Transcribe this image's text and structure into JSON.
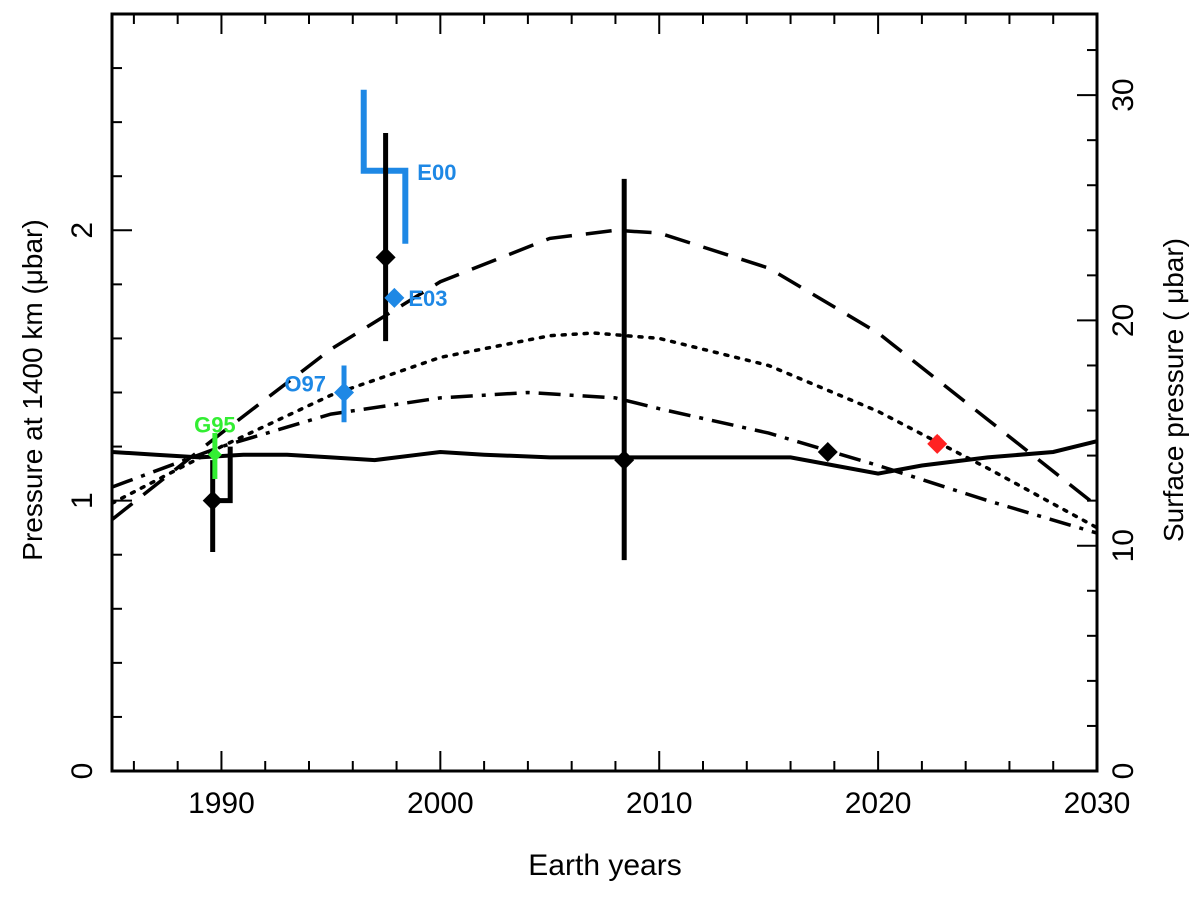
{
  "chart_data": {
    "type": "scatter",
    "xlabel": "Earth years",
    "ylabel_left": "Pressure at 1400 km (μbar)",
    "ylabel_right": "Surface pressure ( μbar)",
    "xlim": [
      1985,
      2030
    ],
    "ylim_left": [
      0,
      2.8
    ],
    "ylim_right": [
      0,
      33.6
    ],
    "x_ticks": [
      1990,
      2000,
      2010,
      2020,
      2030
    ],
    "x_tick_labels": [
      "1990",
      "2000",
      "2010",
      "2020",
      "2030"
    ],
    "y_left_ticks": [
      0,
      1,
      2
    ],
    "y_left_tick_labels": [
      "0",
      "1",
      "2"
    ],
    "y_right_ticks": [
      0,
      10,
      20,
      30
    ],
    "y_right_tick_labels": [
      "0",
      "10",
      "20",
      "30"
    ],
    "grid": false,
    "colors": {
      "black": "#000000",
      "blue": "#1e88e5",
      "green": "#33ee33",
      "red": "#ff2222"
    },
    "measurements": [
      {
        "x": 1989.6,
        "y": 1.0,
        "low": 0.81,
        "high": 1.15,
        "color": "black"
      },
      {
        "x": 1997.5,
        "y": 1.9,
        "low": 1.59,
        "high": 2.36,
        "color": "black"
      },
      {
        "x": 2008.4,
        "y": 1.15,
        "low": 0.78,
        "high": 2.19,
        "color": "black"
      },
      {
        "x": 2017.7,
        "y": 1.18,
        "low": 1.18,
        "high": 1.18,
        "color": "black"
      },
      {
        "x": 2022.7,
        "y": 1.21,
        "low": 1.19,
        "high": 1.24,
        "color": "red"
      },
      {
        "x": 1989.7,
        "y": 1.17,
        "low": 1.08,
        "high": 1.25,
        "color": "green",
        "label": "G95"
      },
      {
        "x": 1995.6,
        "y": 1.4,
        "low": 1.29,
        "high": 1.5,
        "color": "blue",
        "label": "O97"
      },
      {
        "x": 1997.9,
        "y": 1.75,
        "low": 1.75,
        "high": 1.75,
        "color": "blue",
        "label": "E03"
      }
    ],
    "bracket_black": {
      "x": 1990.4,
      "y_low": 1.0,
      "y_high": 1.2,
      "x_start": 1989.6
    },
    "bracket_blue": {
      "label": "E00",
      "x_left": 1996.5,
      "x_right": 1998.4,
      "x_mid": 1997.4,
      "y_top": 2.52,
      "y_mid": 2.22,
      "y_bottom": 1.95
    },
    "series": [
      {
        "name": "dashed-model",
        "style": "dashed",
        "x": [
          1985,
          1990,
          1995,
          2000,
          2005,
          2008,
          2010,
          2015,
          2020,
          2025,
          2030
        ],
        "y": [
          0.93,
          1.25,
          1.56,
          1.81,
          1.97,
          2.0,
          1.99,
          1.86,
          1.62,
          1.3,
          0.98
        ]
      },
      {
        "name": "dotted-model",
        "style": "dotted",
        "x": [
          1985,
          1990,
          1995,
          2000,
          2005,
          2007,
          2010,
          2015,
          2020,
          2025,
          2030
        ],
        "y": [
          0.99,
          1.2,
          1.39,
          1.53,
          1.61,
          1.62,
          1.6,
          1.5,
          1.33,
          1.12,
          0.9
        ]
      },
      {
        "name": "dash-dot-model",
        "style": "dashdot",
        "x": [
          1985,
          1990,
          1995,
          2000,
          2004,
          2008,
          2010,
          2015,
          2020,
          2025,
          2030
        ],
        "y": [
          1.05,
          1.2,
          1.32,
          1.38,
          1.4,
          1.38,
          1.34,
          1.25,
          1.13,
          1.0,
          0.88
        ]
      },
      {
        "name": "solid-model",
        "style": "solid",
        "x": [
          1985,
          1987,
          1989,
          1991,
          1993,
          1995,
          1997,
          1999,
          2000,
          2002,
          2005,
          2008,
          2010,
          2013,
          2016,
          2018,
          2020,
          2022,
          2025,
          2028,
          2030
        ],
        "y": [
          1.18,
          1.17,
          1.16,
          1.17,
          1.17,
          1.16,
          1.15,
          1.17,
          1.18,
          1.17,
          1.16,
          1.16,
          1.16,
          1.16,
          1.16,
          1.13,
          1.1,
          1.13,
          1.16,
          1.18,
          1.22
        ]
      }
    ]
  }
}
